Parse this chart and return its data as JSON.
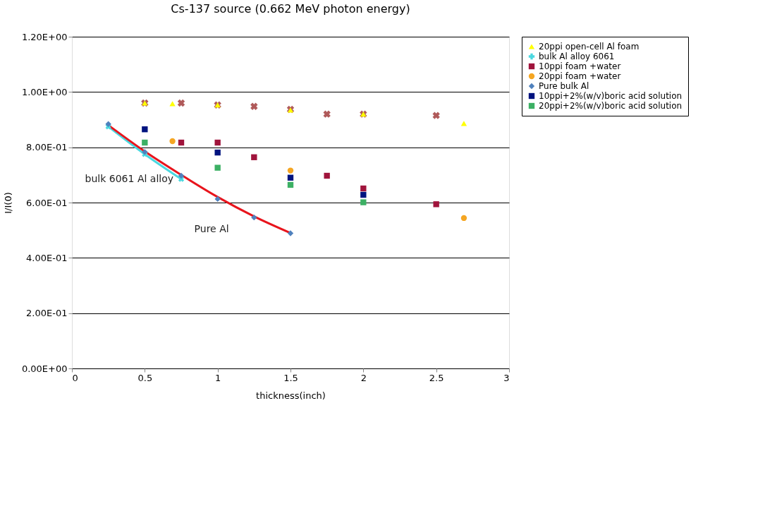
{
  "chart_data": {
    "type": "scatter",
    "title": "Cs-137 source (0.662 MeV photon energy)",
    "xlabel": "thickness(inch)",
    "ylabel": "I/I(0)",
    "xlim": [
      0,
      3
    ],
    "xticks": [
      0,
      0.5,
      1,
      1.5,
      2,
      2.5,
      3
    ],
    "ylim": [
      0,
      1.2
    ],
    "yticks": [
      {
        "value": 0,
        "label": "0.00E+00"
      },
      {
        "value": 0.2,
        "label": "2.00E-01"
      },
      {
        "value": 0.4,
        "label": "4.00E-01"
      },
      {
        "value": 0.6,
        "label": "6.00E-01"
      },
      {
        "value": 0.8,
        "label": "8.00E-01"
      },
      {
        "value": 1.0,
        "label": "1.00E+00"
      },
      {
        "value": 1.2,
        "label": "1.20E+00"
      }
    ],
    "grid": "y",
    "legend": "right",
    "series": [
      {
        "name": "20ppi open-cell Al foam",
        "marker": "triangle",
        "color": "#ffff00",
        "x": [
          0.5,
          0.69,
          1.0,
          1.5,
          2.0,
          2.69
        ],
        "values": [
          0.96,
          0.958,
          0.953,
          0.935,
          0.92,
          0.886
        ]
      },
      {
        "name": "bulk Al alloy 6061",
        "type": "line",
        "marker": "cross",
        "color": "#4bd8e0",
        "x": [
          0.25,
          0.5,
          0.75
        ],
        "values": [
          0.875,
          0.775,
          0.685
        ]
      },
      {
        "name": "10ppi foam +water",
        "marker": "square",
        "color": "#a0143c",
        "x": [
          0.75,
          1.0,
          1.25,
          1.75,
          2.0,
          2.5
        ],
        "values": [
          0.817,
          0.817,
          0.764,
          0.697,
          0.651,
          0.594
        ]
      },
      {
        "name": "20ppi foam +water",
        "marker": "circle",
        "color": "#f5a623",
        "x": [
          0.69,
          1.5,
          2.69
        ],
        "values": [
          0.822,
          0.716,
          0.544
        ]
      },
      {
        "name": "Pure bulk Al",
        "marker": "diamond",
        "color": "#4f81bd",
        "x": [
          0.25,
          0.5,
          0.75,
          1.0,
          1.25,
          1.5
        ],
        "values": [
          0.884,
          0.783,
          0.697,
          0.613,
          0.546,
          0.489
        ]
      },
      {
        "name": "10ppi+2%(w/v)boric acid solution",
        "marker": "square",
        "color": "#00137f",
        "x": [
          0.5,
          1.0,
          1.5,
          2.0
        ],
        "values": [
          0.865,
          0.781,
          0.69,
          0.628
        ]
      },
      {
        "name": "20ppi+2%(w/v)boric acid solution",
        "marker": "square",
        "color": "#3cb064",
        "x": [
          0.5,
          1.0,
          1.5,
          2.0
        ],
        "values": [
          0.817,
          0.726,
          0.664,
          0.601
        ]
      },
      {
        "marker": "cross",
        "color": "#b05a5a",
        "x": [
          0.5,
          0.75,
          1.0,
          1.25,
          1.5,
          1.75,
          2.0,
          2.5
        ],
        "values": [
          0.96,
          0.96,
          0.953,
          0.948,
          0.937,
          0.92,
          0.92,
          0.915
        ]
      },
      {
        "type": "line",
        "marker": "none",
        "color": "#e8141c",
        "x": [
          0.25,
          0.5,
          0.75,
          1.0,
          1.25,
          1.5
        ],
        "values": [
          0.88,
          0.785,
          0.7,
          0.62,
          0.55,
          0.49
        ]
      }
    ],
    "annotations": [
      "bulk 6061 Al alloy",
      "Pure Al"
    ]
  }
}
